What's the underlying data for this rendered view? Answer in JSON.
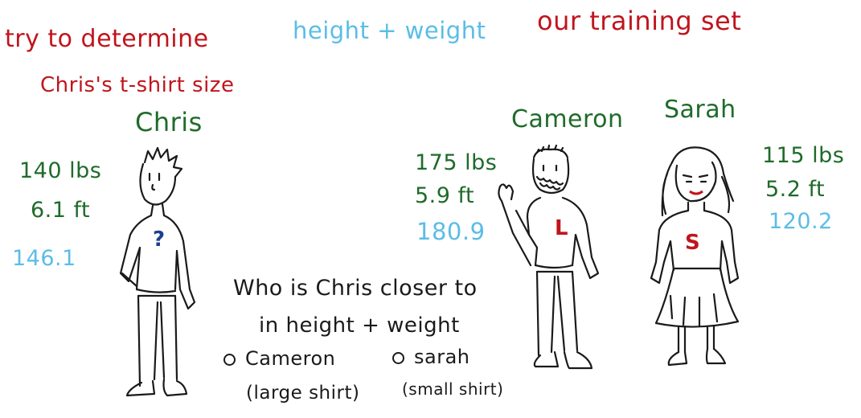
{
  "header": {
    "goal_line1": "try to determine",
    "goal_line2": "Chris's t-shirt size",
    "features": "height + weight",
    "training_set": "our training set"
  },
  "people": {
    "chris": {
      "name": "Chris",
      "weight": "140 lbs",
      "height": "6.1 ft",
      "score": "146.1",
      "shirt": "?"
    },
    "cameron": {
      "name": "Cameron",
      "weight": "175 lbs",
      "height": "5.9 ft",
      "score": "180.9",
      "shirt": "L"
    },
    "sarah": {
      "name": "Sarah",
      "weight": "115 lbs",
      "height": "5.2 ft",
      "score": "120.2",
      "shirt": "S"
    }
  },
  "quiz": {
    "question_line1": "Who is Chris closer to",
    "question_line2": "in height + weight",
    "option1": "Cameron",
    "option1_note": "(large shirt)",
    "option2": "sarah",
    "option2_note": "(small shirt)"
  },
  "colors": {
    "red": "#c0151d",
    "blue": "#5bbde6",
    "green": "#1f6b2a",
    "ink": "#1a1a1a"
  }
}
